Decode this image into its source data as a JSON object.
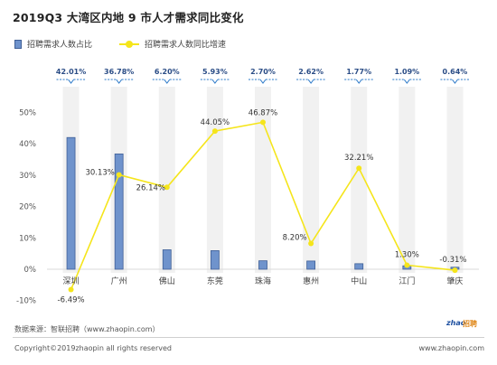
{
  "title": "2019Q3 大湾区内地 9 市人才需求同比变化",
  "legend": {
    "bar_label": "招聘需求人数占比",
    "line_label": "招聘需求人数同比增速"
  },
  "footer": {
    "source": "数据来源：智联招聘（www.zhaopin.com）",
    "copyright": "Copyright©2019zhaopin all rights reserved",
    "site": "www.zhaopin.com",
    "logo_text_1": "zhao",
    "logo_text_2": "招聘"
  },
  "colors": {
    "bar_fill": "#6f93cc",
    "bar_stroke": "#3f5f96",
    "line": "#f5e51b",
    "callout": "#2a78c8",
    "band": "#f1f1f1"
  },
  "chart_data": {
    "type": "bar",
    "categories": [
      "深圳",
      "广州",
      "佛山",
      "东莞",
      "珠海",
      "惠州",
      "中山",
      "江门",
      "肇庆"
    ],
    "ylim": [
      -10,
      50
    ],
    "ytick_labels": [
      "-10%",
      "0%",
      "10%",
      "20%",
      "30%",
      "40%",
      "50%"
    ],
    "ytick_values": [
      -10,
      0,
      10,
      20,
      30,
      40,
      50
    ],
    "series": [
      {
        "name": "招聘需求人数占比",
        "type": "bar",
        "values": [
          42.01,
          36.78,
          6.2,
          5.93,
          2.7,
          2.62,
          1.77,
          1.09,
          0.64
        ],
        "labels": [
          "42.01%",
          "36.78%",
          "6.20%",
          "5.93%",
          "2.70%",
          "2.62%",
          "1.77%",
          "1.09%",
          "0.64%"
        ]
      },
      {
        "name": "招聘需求人数同比增速",
        "type": "line",
        "values": [
          -6.49,
          30.13,
          26.14,
          44.05,
          46.87,
          8.2,
          32.21,
          1.3,
          -0.31
        ],
        "labels": [
          "-6.49%",
          "30.13%",
          "26.14%",
          "44.05%",
          "46.87%",
          "8.20%",
          "32.21%",
          "1.30%",
          "-0.31%"
        ]
      }
    ]
  }
}
